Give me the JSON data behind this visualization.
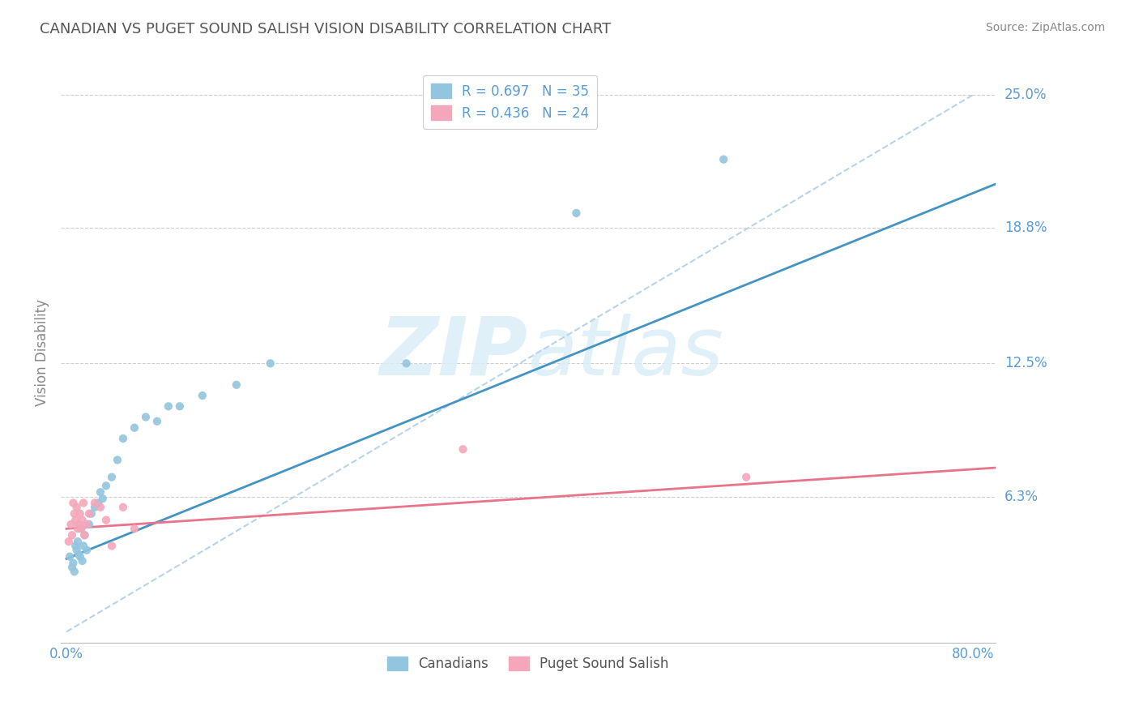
{
  "title": "CANADIAN VS PUGET SOUND SALISH VISION DISABILITY CORRELATION CHART",
  "source": "Source: ZipAtlas.com",
  "ylabel": "Vision Disability",
  "y_tick_labels": [
    "6.3%",
    "12.5%",
    "18.8%",
    "25.0%"
  ],
  "y_tick_vals": [
    0.063,
    0.125,
    0.188,
    0.25
  ],
  "xlim": [
    -0.005,
    0.82
  ],
  "ylim": [
    -0.005,
    0.265
  ],
  "legend1_text": "R = 0.697   N = 35",
  "legend2_text": "R = 0.436   N = 24",
  "legend_x_label": "Canadians",
  "legend_x_label2": "Puget Sound Salish",
  "blue_color": "#92c5de",
  "pink_color": "#f4a6ba",
  "blue_line_color": "#4393c3",
  "pink_line_color": "#e8748a",
  "ref_line_color": "#b8d4e8",
  "background_color": "#ffffff",
  "grid_color": "#d0d0d0",
  "title_color": "#555555",
  "axis_label_color": "#5b9bd5",
  "watermark_color": "#daeef8",
  "canadians_x": [
    0.003,
    0.005,
    0.006,
    0.007,
    0.008,
    0.009,
    0.01,
    0.011,
    0.012,
    0.013,
    0.014,
    0.015,
    0.016,
    0.018,
    0.02,
    0.022,
    0.025,
    0.028,
    0.03,
    0.032,
    0.035,
    0.04,
    0.045,
    0.05,
    0.06,
    0.07,
    0.08,
    0.09,
    0.1,
    0.12,
    0.15,
    0.18,
    0.3,
    0.45,
    0.58
  ],
  "canadians_y": [
    0.035,
    0.03,
    0.032,
    0.028,
    0.04,
    0.038,
    0.042,
    0.036,
    0.035,
    0.048,
    0.033,
    0.04,
    0.045,
    0.038,
    0.05,
    0.055,
    0.058,
    0.06,
    0.065,
    0.062,
    0.068,
    0.072,
    0.08,
    0.09,
    0.095,
    0.1,
    0.098,
    0.105,
    0.105,
    0.11,
    0.115,
    0.125,
    0.125,
    0.195,
    0.22
  ],
  "puget_x": [
    0.002,
    0.004,
    0.005,
    0.006,
    0.007,
    0.008,
    0.009,
    0.01,
    0.011,
    0.012,
    0.013,
    0.014,
    0.015,
    0.016,
    0.018,
    0.02,
    0.025,
    0.03,
    0.035,
    0.04,
    0.05,
    0.06,
    0.35,
    0.6
  ],
  "puget_y": [
    0.042,
    0.05,
    0.045,
    0.06,
    0.055,
    0.052,
    0.058,
    0.048,
    0.05,
    0.055,
    0.048,
    0.052,
    0.06,
    0.045,
    0.05,
    0.055,
    0.06,
    0.058,
    0.052,
    0.04,
    0.058,
    0.048,
    0.085,
    0.072
  ],
  "can_line_x0": 0.0,
  "can_line_y0": 0.034,
  "can_line_x1": 0.78,
  "can_line_y1": 0.2,
  "pug_line_x0": 0.0,
  "pug_line_y0": 0.048,
  "pug_line_x1": 0.78,
  "pug_line_y1": 0.075,
  "ref_line_x0": 0.0,
  "ref_line_y0": 0.0,
  "ref_line_x1": 0.8,
  "ref_line_y1": 0.25
}
